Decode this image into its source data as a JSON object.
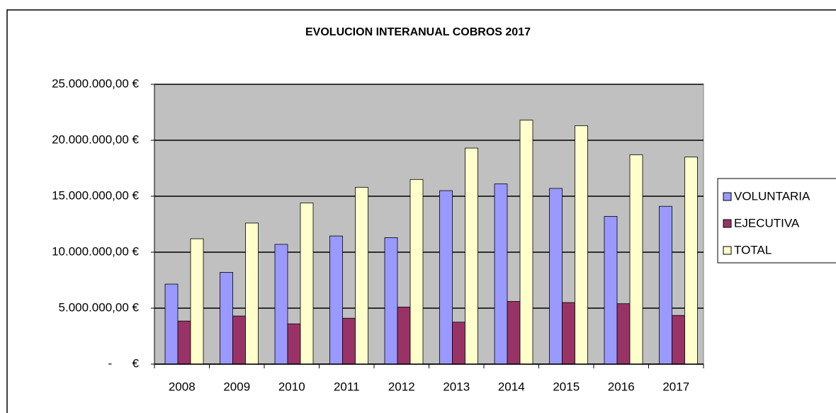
{
  "chart_data": {
    "type": "bar",
    "title": "EVOLUCION INTERANUAL COBROS 2017",
    "categories": [
      "2008",
      "2009",
      "2010",
      "2011",
      "2012",
      "2013",
      "2014",
      "2015",
      "2016",
      "2017"
    ],
    "series": [
      {
        "name": "VOLUNTARIA",
        "color": "#9999ff",
        "values": [
          7150000,
          8200000,
          10700000,
          11450000,
          11300000,
          15500000,
          16100000,
          15700000,
          13200000,
          14100000
        ]
      },
      {
        "name": "EJECUTIVA",
        "color": "#993366",
        "values": [
          3850000,
          4300000,
          3600000,
          4100000,
          5100000,
          3750000,
          5600000,
          5500000,
          5400000,
          4350000
        ]
      },
      {
        "name": "TOTAL",
        "color": "#ffffcc",
        "values": [
          11200000,
          12600000,
          14400000,
          15800000,
          16500000,
          19300000,
          21800000,
          21300000,
          18700000,
          18500000
        ]
      }
    ],
    "ylim": [
      0,
      25000000
    ],
    "yticks": [
      {
        "value": 0,
        "label": "-      €"
      },
      {
        "value": 5000000,
        "label": "5.000.000,00 €"
      },
      {
        "value": 10000000,
        "label": "10.000.000,00 €"
      },
      {
        "value": 15000000,
        "label": "15.000.000,00 €"
      },
      {
        "value": 20000000,
        "label": "20.000.000,00 €"
      },
      {
        "value": 25000000,
        "label": "25.000.000,00 €"
      }
    ],
    "grid": true,
    "legend": "right"
  }
}
